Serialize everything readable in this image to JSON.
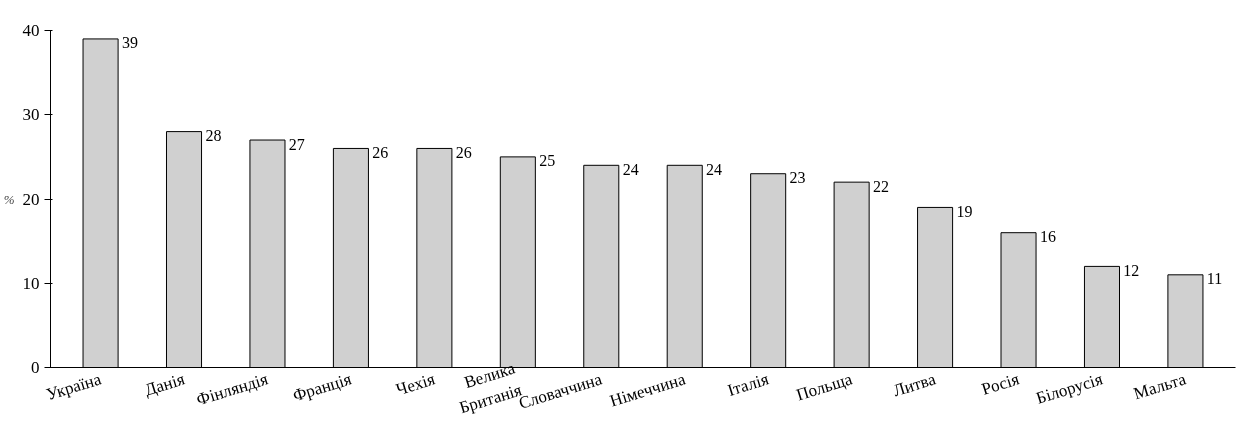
{
  "chart_data": {
    "type": "bar",
    "ylabel": "%",
    "categories": [
      "Україна",
      "Данія",
      "Фінляндія",
      "Франція",
      "Чехія",
      "Велика Британія",
      "Словаччина",
      "Німеччина",
      "Італія",
      "Польща",
      "Литва",
      "Росія",
      "Білорусія",
      "Мальта"
    ],
    "values": [
      39,
      28,
      27,
      26,
      26,
      25,
      24,
      24,
      23,
      22,
      19,
      16,
      12,
      11
    ],
    "color": "#d0d0d0",
    "ylim": [
      0,
      40
    ],
    "yticks": [
      0,
      10,
      20,
      30,
      40
    ],
    "data_labels": true,
    "grid": false
  }
}
